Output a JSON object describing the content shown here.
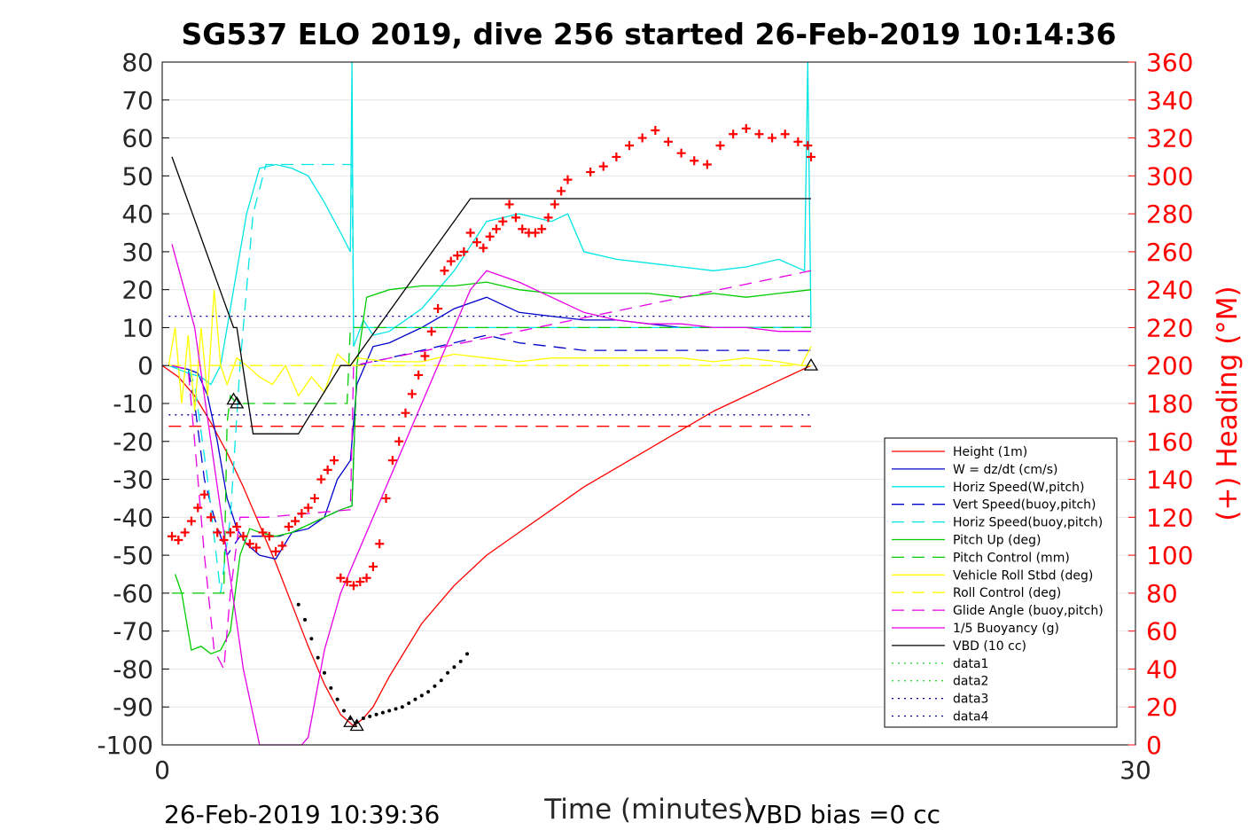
{
  "chart_data": {
    "type": "line",
    "title": "SG537 ELO 2019, dive 256 started 26-Feb-2019 10:14:36",
    "xlabel": "Time (minutes)",
    "ylabel_left": "",
    "ylabel_right": "(+) Heading (°M)",
    "xlim": [
      0,
      30
    ],
    "ylim_left": [
      -100,
      80
    ],
    "ylim_right": [
      0,
      360
    ],
    "x_ticks": [
      "0",
      "30"
    ],
    "y_ticks_left": [
      "80",
      "70",
      "60",
      "50",
      "40",
      "30",
      "20",
      "10",
      "0",
      "-10",
      "-20",
      "-30",
      "-40",
      "-50",
      "-60",
      "-70",
      "-80",
      "-90",
      "-100"
    ],
    "y_ticks_right": [
      "360",
      "340",
      "320",
      "300",
      "280",
      "260",
      "240",
      "220",
      "200",
      "180",
      "160",
      "140",
      "120",
      "100",
      "80",
      "60",
      "40",
      "20",
      "0"
    ],
    "grid": true,
    "legend_position": "lower-right",
    "footer_left": "26-Feb-2019 10:39:36",
    "footer_right": "VBD bias =0 cc",
    "colors": {
      "red": "#ff0000",
      "blue": "#0000cc",
      "cyan": "#00e5e5",
      "green": "#00cc00",
      "yellow": "#ffff00",
      "magenta": "#e600e6",
      "black": "#000000",
      "ltgreen": "#33dd33",
      "navy": "#000099",
      "right_axis": "#ff0000"
    },
    "series": [
      {
        "name": "Height (1m)",
        "color": "red",
        "style": "solid",
        "x": [
          0,
          0.5,
          1,
          1.5,
          2,
          2.5,
          3,
          3.5,
          4,
          4.5,
          5,
          5.5,
          5.9,
          6.2,
          6.5,
          7,
          8,
          9,
          10,
          11,
          12,
          13,
          14,
          15,
          16,
          17,
          18,
          19,
          20
        ],
        "y": [
          0,
          -3,
          -8,
          -15,
          -23,
          -32,
          -42,
          -52,
          -63,
          -74,
          -84,
          -92,
          -95,
          -93,
          -90,
          -82,
          -68,
          -58,
          -50,
          -44,
          -38,
          -32,
          -27,
          -22,
          -17,
          -12,
          -8,
          -4,
          0
        ]
      },
      {
        "name": "W = dz/dt (cm/s)",
        "color": "blue",
        "style": "solid",
        "x": [
          0.2,
          0.8,
          1.1,
          1.4,
          1.7,
          2.0,
          2.3,
          2.6,
          3.0,
          3.5,
          4.0,
          4.5,
          5.0,
          5.4,
          5.8,
          6.0,
          6.5,
          7,
          8,
          9,
          10,
          11,
          12,
          13,
          14,
          15,
          16,
          17,
          18,
          19,
          20
        ],
        "y": [
          0,
          -1,
          -2,
          -8,
          -20,
          -35,
          -43,
          -47,
          -50,
          -51,
          -44,
          -43,
          -40,
          -30,
          -25,
          -5,
          5,
          6,
          10,
          15,
          18,
          14,
          13,
          12,
          12,
          11,
          10,
          10,
          10,
          10,
          10
        ]
      },
      {
        "name": "Horiz Speed(W,pitch)",
        "color": "cyan",
        "style": "solid",
        "x": [
          0.2,
          0.8,
          1.2,
          1.5,
          1.8,
          2.2,
          2.6,
          3.0,
          3.5,
          4.0,
          4.5,
          5.0,
          5.5,
          5.8,
          5.85,
          5.9,
          6.2,
          6.5,
          7,
          8,
          9,
          10,
          11,
          12,
          12.5,
          13,
          14,
          15,
          16,
          17,
          18,
          19,
          19.8,
          19.9,
          20
        ],
        "y": [
          0,
          -2,
          -3,
          -5,
          0,
          20,
          40,
          52,
          53,
          52,
          50,
          43,
          35,
          30,
          82,
          5,
          12,
          8,
          9,
          15,
          25,
          38,
          40,
          38,
          40,
          30,
          28,
          27,
          26,
          25,
          26,
          28,
          25,
          80,
          10
        ]
      },
      {
        "name": "Vert Speed(buoy,pitch)",
        "color": "blue",
        "style": "dash",
        "x": [
          0.2,
          0.8,
          1.0,
          1.3,
          1.6,
          2.0,
          2.4,
          2.8,
          3.2,
          3.6,
          4.0,
          4.5,
          5.0,
          5.5,
          5.85,
          6.0,
          7,
          8,
          9,
          10,
          11,
          12,
          13,
          14,
          15,
          16,
          17,
          18,
          19,
          20
        ],
        "y": [
          0,
          -1,
          -10,
          -30,
          -40,
          -50,
          -45,
          -45,
          -45,
          -45,
          -44,
          -42,
          -40,
          -38,
          -37,
          0,
          2,
          4,
          6,
          8,
          6,
          5,
          4,
          4,
          4,
          4,
          4,
          4,
          4,
          4
        ]
      },
      {
        "name": "Horiz Speed(buoy,pitch)",
        "color": "cyan",
        "style": "dash",
        "x": [
          0.2,
          0.8,
          1.0,
          1.4,
          1.8,
          2.1,
          2.4,
          2.8,
          3.2,
          3.6,
          5.85,
          5.9,
          20
        ],
        "y": [
          0,
          -1,
          -5,
          -30,
          -60,
          -40,
          0,
          40,
          53,
          53,
          53,
          10,
          10
        ]
      },
      {
        "name": "Pitch Up (deg)",
        "color": "green",
        "style": "solid",
        "x": [
          0.4,
          0.6,
          0.9,
          1.2,
          1.5,
          1.8,
          2.1,
          2.4,
          2.7,
          3.0,
          3.5,
          4.0,
          4.5,
          5.0,
          5.5,
          5.85,
          6.0,
          6.3,
          7,
          8,
          9,
          10,
          11,
          12,
          13,
          14,
          15,
          16,
          17,
          18,
          19,
          20
        ],
        "y": [
          -55,
          -60,
          -75,
          -74,
          -76,
          -75,
          -70,
          -50,
          -43,
          -44,
          -45,
          -44,
          -42,
          -40,
          -38,
          -37,
          0,
          18,
          20,
          21,
          21,
          22,
          20,
          19,
          19,
          19,
          19,
          18,
          19,
          18,
          19,
          20
        ]
      },
      {
        "name": "Pitch Control (mm)",
        "color": "green",
        "style": "dash",
        "x": [
          0.3,
          1.9,
          2.0,
          2.1,
          2.3,
          4.0,
          5.7,
          5.8,
          20
        ],
        "y": [
          -60,
          -60,
          -15,
          -8,
          -10,
          -10,
          -10,
          10,
          10
        ]
      },
      {
        "name": "Vehicle Roll Stbd (deg)",
        "color": "yellow",
        "style": "solid",
        "x": [
          0.2,
          0.4,
          0.6,
          0.8,
          1.0,
          1.2,
          1.4,
          1.6,
          1.8,
          2.0,
          2.3,
          2.6,
          3.0,
          3.4,
          3.8,
          4.2,
          4.6,
          5.0,
          5.4,
          5.8,
          6,
          7,
          8,
          9,
          10,
          11,
          12,
          13,
          14,
          15,
          16,
          17,
          18,
          19,
          19.7,
          20
        ],
        "y": [
          0,
          10,
          -10,
          8,
          -12,
          10,
          -8,
          20,
          0,
          -5,
          2,
          0,
          -3,
          -5,
          0,
          -8,
          -3,
          -7,
          3,
          0,
          2,
          1,
          1,
          3,
          2,
          1,
          2,
          2,
          2,
          2,
          2,
          1,
          2,
          1,
          0,
          5
        ]
      },
      {
        "name": "Roll Control (deg)",
        "color": "yellow",
        "style": "dash",
        "x": [
          0.2,
          20
        ],
        "y": [
          0,
          0
        ]
      },
      {
        "name": "Glide Angle (buoy,pitch)",
        "color": "magenta",
        "style": "dash",
        "x": [
          0.3,
          0.8,
          1.0,
          1.3,
          1.6,
          1.9,
          2.1,
          2.4,
          2.8,
          3.2,
          5.8,
          5.9,
          20
        ],
        "y": [
          0,
          -1,
          -20,
          -50,
          -75,
          -80,
          -60,
          -40,
          -40,
          -40,
          -38,
          0,
          25
        ]
      },
      {
        "name": "1/5 Buoyancy (g)",
        "color": "magenta",
        "style": "solid",
        "x": [
          0.3,
          1.0,
          1.5,
          2.0,
          2.5,
          3.0,
          3.5,
          4.0,
          4.3,
          4.5,
          5.0,
          5.5,
          6.0,
          7,
          8,
          9,
          9.5,
          10,
          11,
          12,
          13,
          14,
          15,
          16,
          17,
          18,
          19,
          20
        ],
        "y": [
          32,
          10,
          -20,
          -50,
          -80,
          -100,
          -100,
          -100,
          -100,
          -98,
          -75,
          -60,
          -50,
          -30,
          -10,
          10,
          20,
          25,
          22,
          18,
          14,
          12,
          11,
          11,
          10,
          10,
          9,
          9
        ]
      },
      {
        "name": "VBD (10 cc)",
        "color": "black",
        "style": "solid",
        "x": [
          0.3,
          2.2,
          2.3,
          2.8,
          4.0,
          4.2,
          5.5,
          5.8,
          9.5,
          20
        ],
        "y": [
          55,
          10,
          10,
          -18,
          -18,
          -18,
          0,
          0,
          44,
          44
        ]
      },
      {
        "name": "data1",
        "color": "ltgreen",
        "style": "dot",
        "x": [],
        "y": []
      },
      {
        "name": "data2",
        "color": "ltgreen",
        "style": "dot",
        "x": [],
        "y": []
      },
      {
        "name": "data3",
        "color": "navy",
        "style": "dot",
        "x": [
          0.2,
          20
        ],
        "y": [
          13,
          13
        ]
      },
      {
        "name": "data4",
        "color": "navy",
        "style": "dot",
        "x": [
          0.2,
          20
        ],
        "y": [
          -13,
          -13
        ]
      }
    ],
    "reference_lines": [
      {
        "color": "red",
        "style": "dash",
        "x": [
          0.2,
          20
        ],
        "y": [
          -16,
          -16
        ]
      }
    ],
    "depth_points": {
      "color": "black",
      "x": [
        4.2,
        4.4,
        4.6,
        4.8,
        5.0,
        5.2,
        5.4,
        5.6,
        5.8,
        6.0,
        6.2,
        6.4,
        6.6,
        6.8,
        7.0,
        7.2,
        7.4,
        7.6,
        7.8,
        8.0,
        8.2,
        8.4,
        8.6,
        8.8,
        9.0,
        9.2,
        9.4
      ],
      "y": [
        -63,
        -67,
        -72,
        -77,
        -81,
        -85,
        -88,
        -91,
        -93,
        -94,
        -93,
        -92.5,
        -92,
        -91.5,
        -91,
        -90.5,
        -90,
        -89,
        -88,
        -87,
        -86,
        -84.5,
        -83,
        -81,
        -79.5,
        -78,
        -76
      ]
    },
    "triangles": [
      {
        "x": 2.2,
        "y": -9
      },
      {
        "x": 2.3,
        "y": -10
      },
      {
        "x": 5.8,
        "y": -94
      },
      {
        "x": 6.0,
        "y": -95
      },
      {
        "x": 20.0,
        "y": 0
      }
    ],
    "heading": {
      "name": "Heading",
      "color": "red",
      "marker": "+",
      "x": [
        0.3,
        0.5,
        0.7,
        0.9,
        1.1,
        1.3,
        1.5,
        1.7,
        1.9,
        2.1,
        2.3,
        2.5,
        2.7,
        2.9,
        3.1,
        3.3,
        3.5,
        3.7,
        3.9,
        4.1,
        4.3,
        4.5,
        4.7,
        4.9,
        5.1,
        5.3,
        5.5,
        5.7,
        5.9,
        6.1,
        6.3,
        6.5,
        6.7,
        6.9,
        7.1,
        7.3,
        7.5,
        7.7,
        7.9,
        8.1,
        8.3,
        8.5,
        8.7,
        8.9,
        9.1,
        9.3,
        9.5,
        9.7,
        9.9,
        10.1,
        10.3,
        10.5,
        10.7,
        10.9,
        11.1,
        11.3,
        11.5,
        11.7,
        11.9,
        12.1,
        12.3,
        12.5,
        13.2,
        13.6,
        14.0,
        14.4,
        14.8,
        15.2,
        15.6,
        16.0,
        16.4,
        16.8,
        17.2,
        17.6,
        18.0,
        18.4,
        18.8,
        19.2,
        19.6,
        19.9,
        20.0
      ],
      "y": [
        110,
        108,
        112,
        118,
        125,
        132,
        120,
        112,
        108,
        112,
        115,
        110,
        106,
        104,
        112,
        110,
        102,
        105,
        115,
        118,
        122,
        125,
        130,
        140,
        145,
        150,
        88,
        86,
        84,
        86,
        88,
        94,
        106,
        130,
        150,
        160,
        175,
        185,
        195,
        205,
        218,
        230,
        250,
        255,
        258,
        260,
        270,
        265,
        262,
        268,
        272,
        276,
        285,
        278,
        272,
        270,
        270,
        272,
        278,
        285,
        292,
        298,
        302,
        305,
        310,
        316,
        320,
        324,
        318,
        312,
        308,
        306,
        316,
        322,
        325,
        322,
        320,
        322,
        318,
        316,
        310
      ]
    }
  }
}
